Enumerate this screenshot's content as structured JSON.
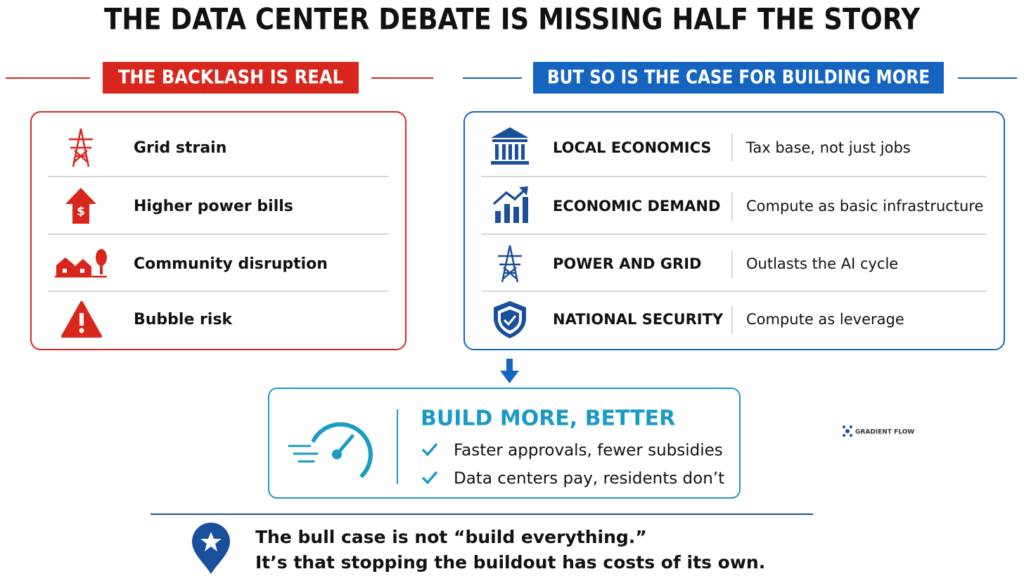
{
  "title": "THE DATA CENTER DEBATE IS MISSING HALF THE STORY",
  "left": {
    "heading": "THE BACKLASH IS REAL",
    "items": [
      "Grid strain",
      "Higher power bills",
      "Community disruption",
      "Bubble risk"
    ]
  },
  "right": {
    "heading": "BUT SO IS THE CASE FOR BUILDING MORE",
    "items": [
      {
        "label": "LOCAL ECONOMICS",
        "text": "Tax base, not just jobs"
      },
      {
        "label": "ECONOMIC DEMAND",
        "text": "Compute as basic infrastructure"
      },
      {
        "label": "POWER AND GRID",
        "text": "Outlasts the AI cycle"
      },
      {
        "label": "NATIONAL SECURITY",
        "text": "Compute as leverage"
      }
    ]
  },
  "conclusion": {
    "heading": "BUILD MORE, BETTER",
    "points": [
      "Faster approvals, fewer subsidies",
      "Data centers pay, residents don’t"
    ]
  },
  "brand": "GRADIENT FLOW",
  "footer": {
    "lines": [
      "The bull case is not “build everything.”",
      "It’s that stopping the buildout has costs of its own."
    ]
  }
}
